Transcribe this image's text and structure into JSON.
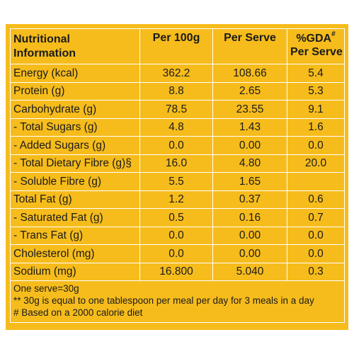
{
  "header": {
    "col0_line1": "Nutritional",
    "col0_line2": "Information",
    "col1": "Per 100g",
    "col2": "Per Serve",
    "col3_line1": "%GDA",
    "col3_sup": "#",
    "col3_line2": "Per Serve"
  },
  "rows": [
    {
      "label": "Energy (kcal)",
      "per100g": "362.2",
      "perServe": "108.66",
      "gda": "5.4"
    },
    {
      "label": "Protein (g)",
      "per100g": "8.8",
      "perServe": "2.65",
      "gda": "5.3"
    },
    {
      "label": "Carbohydrate (g)",
      "per100g": "78.5",
      "perServe": "23.55",
      "gda": "9.1"
    },
    {
      "label": "- Total Sugars (g)",
      "per100g": "4.8",
      "perServe": "1.43",
      "gda": "1.6"
    },
    {
      "label": "- Added Sugars (g)",
      "per100g": "0.0",
      "perServe": "0.00",
      "gda": "0.0"
    },
    {
      "label": "- Total Dietary Fibre (g)§",
      "per100g": "16.0",
      "perServe": "4.80",
      "gda": "20.0"
    },
    {
      "label": "- Soluble Fibre (g)",
      "per100g": "5.5",
      "perServe": "1.65",
      "gda": ""
    },
    {
      "label": "Total Fat (g)",
      "per100g": "1.2",
      "perServe": "0.37",
      "gda": "0.6"
    },
    {
      "label": "- Saturated Fat (g)",
      "per100g": "0.5",
      "perServe": "0.16",
      "gda": "0.7"
    },
    {
      "label": "- Trans Fat (g)",
      "per100g": "0.0",
      "perServe": "0.00",
      "gda": "0.0"
    },
    {
      "label": "Cholesterol (mg)",
      "per100g": "0.0",
      "perServe": "0.00",
      "gda": "0.0"
    },
    {
      "label": "Sodium (mg)",
      "per100g": "16.800",
      "perServe": "5.040",
      "gda": "0.3"
    }
  ],
  "footnotes": [
    "One serve=30g",
    "** 30g is equal to one tablespoon per meal per day for 3 meals in a day",
    "# Based on a 2000 calorie diet"
  ],
  "colors": {
    "background": "#f6bc1c",
    "grid": "#ffffff",
    "text": "#1b1b1b"
  }
}
